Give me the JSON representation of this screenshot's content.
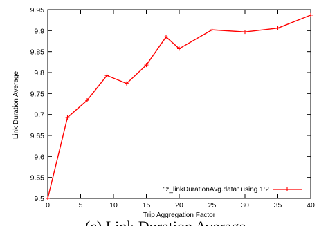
{
  "caption": "(c) Link Duration Average",
  "colors": {
    "series": "#ff0000",
    "axis": "#000000"
  },
  "chart_data": {
    "type": "line",
    "title": "",
    "xlabel": "Trip Aggregation Factor",
    "ylabel": "Link Duration Average",
    "xlim": [
      0,
      40
    ],
    "ylim": [
      9.5,
      9.95
    ],
    "xticks": [
      0,
      5,
      10,
      15,
      20,
      25,
      30,
      35,
      40
    ],
    "xtick_labels": [
      "0",
      "5",
      "10",
      "15",
      "20",
      "25",
      "30",
      "35",
      "40"
    ],
    "yticks": [
      9.5,
      9.55,
      9.6,
      9.65,
      9.7,
      9.75,
      9.8,
      9.85,
      9.9,
      9.95
    ],
    "ytick_labels": [
      "9.5",
      "9.55",
      "9.6",
      "9.65",
      "9.7",
      "9.75",
      "9.8",
      "9.85",
      "9.9",
      "9.95"
    ],
    "grid": false,
    "legend_position": "bottom-right",
    "series": [
      {
        "name": "\"z_linkDurationAvg.data\" using 1:2",
        "marker": "plus",
        "x": [
          0,
          3,
          6,
          9,
          12,
          15,
          18,
          20,
          25,
          30,
          35,
          40
        ],
        "y": [
          9.5,
          9.693,
          9.734,
          9.793,
          9.774,
          9.818,
          9.885,
          9.857,
          9.902,
          9.897,
          9.906,
          9.937
        ]
      }
    ]
  }
}
